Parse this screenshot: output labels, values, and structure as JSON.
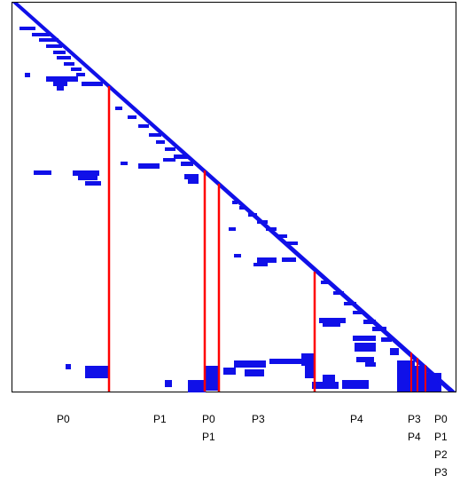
{
  "colors": {
    "background": "#ffffff",
    "frame": "#000000",
    "nonzero": "#1010e8",
    "separator": "#ff0000",
    "label": "#000000"
  },
  "labels": [
    {
      "id": "p0",
      "text": "P0"
    },
    {
      "id": "p1",
      "text": "P1"
    },
    {
      "id": "p0p1",
      "lines": [
        "P0",
        "P1"
      ]
    },
    {
      "id": "p3",
      "text": "P3"
    },
    {
      "id": "p4",
      "text": "P4"
    },
    {
      "id": "p3p4",
      "lines": [
        "P3",
        "P4"
      ]
    },
    {
      "id": "p0p1p2p3",
      "lines": [
        "P0",
        "P1",
        "P2",
        "P3"
      ]
    }
  ]
}
